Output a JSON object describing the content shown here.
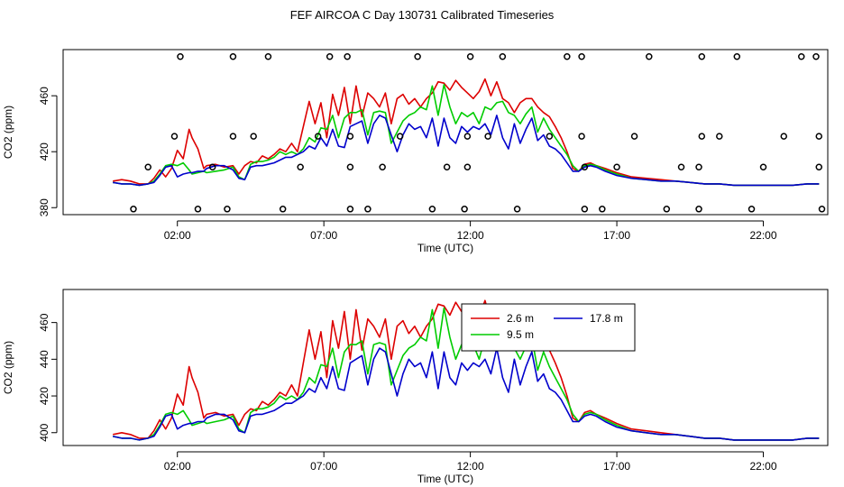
{
  "title": "FEF AIRCOA C  Day 130731  Calibrated Timeseries",
  "colors": {
    "s1": "#dd0000",
    "s2": "#00cc00",
    "s3": "#0000cc",
    "axis": "#000000"
  },
  "chart_data": [
    {
      "type": "line",
      "id": "top",
      "xlabel": "Time (UTC)",
      "ylabel": "CO2 (ppm)",
      "x_ticks": [
        "02:00",
        "07:00",
        "12:00",
        "17:00",
        "22:00"
      ],
      "x_tick_hours": [
        2,
        7,
        12,
        17,
        22
      ],
      "xlim_hours": [
        -1.9,
        24.2
      ],
      "y_ticks": [
        380,
        420,
        460
      ],
      "ylim": [
        375,
        493
      ],
      "series_shown": [
        "2.6 m",
        "9.5 m",
        "17.8 m"
      ],
      "marker_series": {
        "name": "circles",
        "points": [
          [
            2.1,
            488
          ],
          [
            3.9,
            488
          ],
          [
            5.1,
            488
          ],
          [
            7.2,
            488
          ],
          [
            7.8,
            488
          ],
          [
            10.2,
            488
          ],
          [
            12.0,
            488
          ],
          [
            13.1,
            488
          ],
          [
            15.3,
            488
          ],
          [
            15.8,
            488
          ],
          [
            18.1,
            488
          ],
          [
            19.9,
            488
          ],
          [
            21.1,
            488
          ],
          [
            23.3,
            488
          ],
          [
            23.8,
            488
          ],
          [
            1.9,
            431
          ],
          [
            3.9,
            431
          ],
          [
            4.6,
            431
          ],
          [
            6.8,
            431
          ],
          [
            7.9,
            431
          ],
          [
            9.6,
            431
          ],
          [
            11.9,
            431
          ],
          [
            12.6,
            431
          ],
          [
            14.7,
            431
          ],
          [
            15.8,
            431
          ],
          [
            17.6,
            431
          ],
          [
            19.9,
            431
          ],
          [
            20.5,
            431
          ],
          [
            22.7,
            431
          ],
          [
            23.9,
            431
          ],
          [
            1.0,
            409
          ],
          [
            3.2,
            409
          ],
          [
            6.2,
            409
          ],
          [
            7.9,
            409
          ],
          [
            9.0,
            409
          ],
          [
            11.2,
            409
          ],
          [
            11.9,
            409
          ],
          [
            15.9,
            409
          ],
          [
            17.0,
            409
          ],
          [
            19.2,
            409
          ],
          [
            19.8,
            409
          ],
          [
            22.0,
            409
          ],
          [
            23.9,
            409
          ],
          [
            0.5,
            379
          ],
          [
            2.7,
            379
          ],
          [
            3.7,
            379
          ],
          [
            5.6,
            379
          ],
          [
            7.9,
            379
          ],
          [
            8.5,
            379
          ],
          [
            10.7,
            379
          ],
          [
            11.8,
            379
          ],
          [
            13.6,
            379
          ],
          [
            15.9,
            379
          ],
          [
            16.5,
            379
          ],
          [
            18.7,
            379
          ],
          [
            19.8,
            379
          ],
          [
            21.6,
            379
          ],
          [
            24.0,
            379
          ]
        ]
      }
    },
    {
      "type": "line",
      "id": "bottom",
      "xlabel": "Time (UTC)",
      "ylabel": "CO2 (ppm)",
      "x_ticks": [
        "02:00",
        "07:00",
        "12:00",
        "17:00",
        "22:00"
      ],
      "x_tick_hours": [
        2,
        7,
        12,
        17,
        22
      ],
      "xlim_hours": [
        -1.9,
        24.2
      ],
      "y_ticks": [
        400,
        420,
        440,
        460
      ],
      "ylim": [
        393,
        478
      ],
      "legend": {
        "position": "top-right",
        "entries": [
          "2.6 m",
          "9.5 m",
          "17.8 m"
        ]
      }
    }
  ],
  "series": [
    {
      "name": "2.6 m",
      "color_key": "s1",
      "points": [
        [
          -0.2,
          399
        ],
        [
          0.1,
          400
        ],
        [
          0.4,
          399
        ],
        [
          0.7,
          397
        ],
        [
          1.0,
          397
        ],
        [
          1.2,
          401
        ],
        [
          1.4,
          407
        ],
        [
          1.6,
          402
        ],
        [
          1.8,
          408
        ],
        [
          2.0,
          421
        ],
        [
          2.2,
          415
        ],
        [
          2.4,
          436
        ],
        [
          2.5,
          430
        ],
        [
          2.7,
          422
        ],
        [
          2.9,
          408
        ],
        [
          3.0,
          410
        ],
        [
          3.3,
          411
        ],
        [
          3.6,
          409
        ],
        [
          3.9,
          410
        ],
        [
          4.1,
          404
        ],
        [
          4.3,
          410
        ],
        [
          4.5,
          413
        ],
        [
          4.7,
          412
        ],
        [
          4.9,
          417
        ],
        [
          5.1,
          415
        ],
        [
          5.3,
          418
        ],
        [
          5.5,
          422
        ],
        [
          5.7,
          420
        ],
        [
          5.9,
          426
        ],
        [
          6.1,
          420
        ],
        [
          6.3,
          438
        ],
        [
          6.5,
          456
        ],
        [
          6.7,
          440
        ],
        [
          6.9,
          455
        ],
        [
          7.1,
          430
        ],
        [
          7.3,
          461
        ],
        [
          7.5,
          446
        ],
        [
          7.7,
          466
        ],
        [
          7.9,
          440
        ],
        [
          8.1,
          467
        ],
        [
          8.3,
          445
        ],
        [
          8.5,
          462
        ],
        [
          8.7,
          458
        ],
        [
          8.9,
          452
        ],
        [
          9.1,
          462
        ],
        [
          9.3,
          440
        ],
        [
          9.5,
          458
        ],
        [
          9.7,
          461
        ],
        [
          9.9,
          454
        ],
        [
          10.1,
          458
        ],
        [
          10.3,
          452
        ],
        [
          10.5,
          458
        ],
        [
          10.7,
          462
        ],
        [
          10.9,
          470
        ],
        [
          11.1,
          469
        ],
        [
          11.3,
          464
        ],
        [
          11.5,
          471
        ],
        [
          11.7,
          466
        ],
        [
          11.9,
          462
        ],
        [
          12.1,
          458
        ],
        [
          12.3,
          463
        ],
        [
          12.5,
          472
        ],
        [
          12.7,
          460
        ],
        [
          12.9,
          470
        ],
        [
          13.1,
          458
        ],
        [
          13.3,
          455
        ],
        [
          13.5,
          448
        ],
        [
          13.7,
          455
        ],
        [
          13.9,
          458
        ],
        [
          14.1,
          458
        ],
        [
          14.3,
          452
        ],
        [
          14.5,
          448
        ],
        [
          14.7,
          445
        ],
        [
          14.9,
          438
        ],
        [
          15.1,
          430
        ],
        [
          15.3,
          420
        ],
        [
          15.5,
          408
        ],
        [
          15.7,
          406
        ],
        [
          15.9,
          411
        ],
        [
          16.1,
          412
        ],
        [
          16.3,
          410
        ],
        [
          16.6,
          408
        ],
        [
          17.0,
          405
        ],
        [
          17.5,
          402
        ],
        [
          18.0,
          401
        ],
        [
          18.5,
          400
        ],
        [
          19.0,
          399
        ],
        [
          19.5,
          398
        ],
        [
          20.0,
          397
        ],
        [
          20.5,
          397
        ],
        [
          21.0,
          396
        ],
        [
          21.5,
          396
        ],
        [
          22.0,
          396
        ],
        [
          22.5,
          396
        ],
        [
          23.0,
          396
        ],
        [
          23.5,
          397
        ],
        [
          23.9,
          397
        ]
      ]
    },
    {
      "name": "9.5 m",
      "color_key": "s2",
      "points": [
        [
          -0.2,
          398
        ],
        [
          0.1,
          397
        ],
        [
          0.4,
          397
        ],
        [
          0.7,
          396
        ],
        [
          1.0,
          397
        ],
        [
          1.2,
          399
        ],
        [
          1.4,
          404
        ],
        [
          1.6,
          410
        ],
        [
          1.8,
          411
        ],
        [
          2.0,
          410
        ],
        [
          2.2,
          412
        ],
        [
          2.4,
          407
        ],
        [
          2.5,
          404
        ],
        [
          2.7,
          405
        ],
        [
          2.9,
          406
        ],
        [
          3.0,
          405
        ],
        [
          3.3,
          406
        ],
        [
          3.6,
          407
        ],
        [
          3.9,
          409
        ],
        [
          4.1,
          402
        ],
        [
          4.3,
          400
        ],
        [
          4.5,
          411
        ],
        [
          4.7,
          413
        ],
        [
          4.9,
          413
        ],
        [
          5.1,
          414
        ],
        [
          5.3,
          416
        ],
        [
          5.5,
          420
        ],
        [
          5.7,
          418
        ],
        [
          5.9,
          420
        ],
        [
          6.1,
          418
        ],
        [
          6.3,
          422
        ],
        [
          6.5,
          430
        ],
        [
          6.7,
          427
        ],
        [
          6.9,
          437
        ],
        [
          7.1,
          436
        ],
        [
          7.3,
          446
        ],
        [
          7.5,
          430
        ],
        [
          7.7,
          444
        ],
        [
          7.9,
          448
        ],
        [
          8.1,
          448
        ],
        [
          8.3,
          450
        ],
        [
          8.5,
          432
        ],
        [
          8.7,
          448
        ],
        [
          8.9,
          449
        ],
        [
          9.1,
          448
        ],
        [
          9.3,
          426
        ],
        [
          9.5,
          434
        ],
        [
          9.7,
          442
        ],
        [
          9.9,
          446
        ],
        [
          10.1,
          448
        ],
        [
          10.3,
          452
        ],
        [
          10.5,
          450
        ],
        [
          10.7,
          467
        ],
        [
          10.9,
          446
        ],
        [
          11.1,
          468
        ],
        [
          11.3,
          452
        ],
        [
          11.5,
          440
        ],
        [
          11.7,
          448
        ],
        [
          11.9,
          445
        ],
        [
          12.1,
          448
        ],
        [
          12.3,
          440
        ],
        [
          12.5,
          452
        ],
        [
          12.7,
          450
        ],
        [
          12.9,
          455
        ],
        [
          13.1,
          456
        ],
        [
          13.3,
          448
        ],
        [
          13.5,
          446
        ],
        [
          13.7,
          440
        ],
        [
          13.9,
          447
        ],
        [
          14.1,
          452
        ],
        [
          14.3,
          434
        ],
        [
          14.5,
          444
        ],
        [
          14.7,
          436
        ],
        [
          14.9,
          430
        ],
        [
          15.1,
          424
        ],
        [
          15.3,
          418
        ],
        [
          15.5,
          410
        ],
        [
          15.7,
          406
        ],
        [
          15.9,
          410
        ],
        [
          16.1,
          411
        ],
        [
          16.3,
          410
        ],
        [
          16.6,
          407
        ],
        [
          17.0,
          404
        ],
        [
          17.5,
          401
        ],
        [
          18.0,
          400
        ],
        [
          18.5,
          399
        ],
        [
          19.0,
          399
        ],
        [
          19.5,
          398
        ],
        [
          20.0,
          397
        ],
        [
          20.5,
          397
        ],
        [
          21.0,
          396
        ],
        [
          21.5,
          396
        ],
        [
          22.0,
          396
        ],
        [
          22.5,
          396
        ],
        [
          23.0,
          396
        ],
        [
          23.5,
          397
        ],
        [
          23.9,
          397
        ]
      ]
    },
    {
      "name": "17.8 m",
      "color_key": "s3",
      "points": [
        [
          -0.2,
          398
        ],
        [
          0.1,
          397
        ],
        [
          0.4,
          397
        ],
        [
          0.7,
          396
        ],
        [
          1.0,
          397
        ],
        [
          1.2,
          398
        ],
        [
          1.4,
          403
        ],
        [
          1.6,
          409
        ],
        [
          1.8,
          410
        ],
        [
          2.0,
          402
        ],
        [
          2.2,
          404
        ],
        [
          2.4,
          405
        ],
        [
          2.5,
          405
        ],
        [
          2.7,
          406
        ],
        [
          2.9,
          406
        ],
        [
          3.0,
          408
        ],
        [
          3.3,
          410
        ],
        [
          3.6,
          410
        ],
        [
          3.9,
          407
        ],
        [
          4.1,
          401
        ],
        [
          4.3,
          400
        ],
        [
          4.5,
          409
        ],
        [
          4.7,
          410
        ],
        [
          4.9,
          410
        ],
        [
          5.1,
          411
        ],
        [
          5.3,
          412
        ],
        [
          5.5,
          414
        ],
        [
          5.7,
          416
        ],
        [
          5.9,
          416
        ],
        [
          6.1,
          418
        ],
        [
          6.3,
          420
        ],
        [
          6.5,
          424
        ],
        [
          6.7,
          422
        ],
        [
          6.9,
          430
        ],
        [
          7.1,
          424
        ],
        [
          7.3,
          436
        ],
        [
          7.5,
          424
        ],
        [
          7.7,
          423
        ],
        [
          7.9,
          438
        ],
        [
          8.1,
          440
        ],
        [
          8.3,
          442
        ],
        [
          8.5,
          426
        ],
        [
          8.7,
          440
        ],
        [
          8.9,
          446
        ],
        [
          9.1,
          444
        ],
        [
          9.3,
          432
        ],
        [
          9.5,
          420
        ],
        [
          9.7,
          432
        ],
        [
          9.9,
          440
        ],
        [
          10.1,
          436
        ],
        [
          10.3,
          438
        ],
        [
          10.5,
          430
        ],
        [
          10.7,
          444
        ],
        [
          10.9,
          424
        ],
        [
          11.1,
          444
        ],
        [
          11.3,
          430
        ],
        [
          11.5,
          426
        ],
        [
          11.7,
          438
        ],
        [
          11.9,
          434
        ],
        [
          12.1,
          438
        ],
        [
          12.3,
          436
        ],
        [
          12.5,
          440
        ],
        [
          12.7,
          432
        ],
        [
          12.9,
          446
        ],
        [
          13.1,
          430
        ],
        [
          13.3,
          422
        ],
        [
          13.5,
          440
        ],
        [
          13.7,
          426
        ],
        [
          13.9,
          436
        ],
        [
          14.1,
          444
        ],
        [
          14.3,
          428
        ],
        [
          14.5,
          432
        ],
        [
          14.7,
          424
        ],
        [
          14.9,
          422
        ],
        [
          15.1,
          418
        ],
        [
          15.3,
          412
        ],
        [
          15.5,
          406
        ],
        [
          15.7,
          406
        ],
        [
          15.9,
          409
        ],
        [
          16.1,
          410
        ],
        [
          16.3,
          409
        ],
        [
          16.6,
          406
        ],
        [
          17.0,
          403
        ],
        [
          17.5,
          401
        ],
        [
          18.0,
          400
        ],
        [
          18.5,
          399
        ],
        [
          19.0,
          399
        ],
        [
          19.5,
          398
        ],
        [
          20.0,
          397
        ],
        [
          20.5,
          397
        ],
        [
          21.0,
          396
        ],
        [
          21.5,
          396
        ],
        [
          22.0,
          396
        ],
        [
          22.5,
          396
        ],
        [
          23.0,
          396
        ],
        [
          23.5,
          397
        ],
        [
          23.9,
          397
        ]
      ]
    }
  ]
}
